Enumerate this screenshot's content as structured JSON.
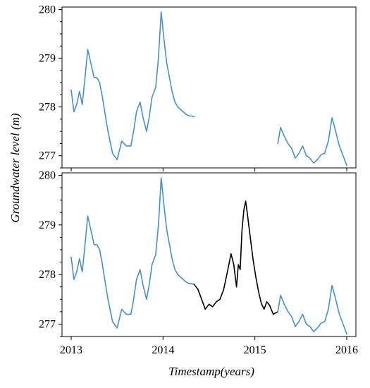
{
  "colors": {
    "observed": "#4a90c4",
    "imputed": "#000000"
  },
  "chart_data": [
    {
      "type": "line",
      "panel": "top",
      "xlabel": "",
      "ylabel": "Groundwater level (m)",
      "xlim": [
        2012.9,
        2016.1
      ],
      "ylim": [
        276.75,
        280.05
      ],
      "yticks": [
        277,
        278,
        279,
        280
      ],
      "xticks": [
        2013,
        2014,
        2015,
        2016
      ],
      "show_xtick_labels": false,
      "grid": false,
      "series": [
        {
          "color_key": "observed",
          "x": [
            2013.0,
            2013.03,
            2013.06,
            2013.09,
            2013.12,
            2013.15,
            2013.18,
            2013.22,
            2013.25,
            2013.28,
            2013.31,
            2013.34,
            2013.37,
            2013.4,
            2013.45,
            2013.5,
            2013.55,
            2013.6,
            2013.65,
            2013.68,
            2013.71,
            2013.75,
            2013.78,
            2013.82,
            2013.85,
            2013.88,
            2013.92,
            2013.95,
            2013.98,
            2014.01,
            2014.04,
            2014.07,
            2014.1,
            2014.13,
            2014.16,
            2014.19,
            2014.22,
            2014.25,
            2014.28,
            2014.3,
            2014.34
          ],
          "values": [
            278.35,
            277.9,
            278.05,
            278.32,
            278.05,
            278.6,
            279.18,
            278.85,
            278.6,
            278.6,
            278.5,
            278.2,
            277.85,
            277.5,
            277.05,
            276.92,
            277.3,
            277.2,
            277.2,
            277.5,
            277.9,
            278.1,
            277.8,
            277.5,
            277.8,
            278.2,
            278.4,
            279.0,
            279.95,
            279.4,
            278.9,
            278.6,
            278.3,
            278.1,
            278.0,
            277.95,
            277.9,
            277.85,
            277.82,
            277.82,
            277.8
          ]
        },
        {
          "color_key": "observed",
          "x": [
            2015.25,
            2015.28,
            2015.32,
            2015.36,
            2015.4,
            2015.44,
            2015.48,
            2015.52,
            2015.56,
            2015.6,
            2015.64,
            2015.68,
            2015.72,
            2015.76,
            2015.8,
            2015.84,
            2015.88,
            2015.92,
            2015.96,
            2016.0
          ],
          "values": [
            277.25,
            277.58,
            277.4,
            277.25,
            277.15,
            276.95,
            277.05,
            277.2,
            277.0,
            276.95,
            276.85,
            276.92,
            277.02,
            277.05,
            277.3,
            277.78,
            277.5,
            277.2,
            277.0,
            276.8
          ]
        }
      ]
    },
    {
      "type": "line",
      "panel": "bottom",
      "xlabel": "Timestamp(years)",
      "ylabel": "",
      "xlim": [
        2012.9,
        2016.1
      ],
      "ylim": [
        276.75,
        280.05
      ],
      "yticks": [
        277,
        278,
        279,
        280
      ],
      "xticks": [
        2013,
        2014,
        2015,
        2016
      ],
      "xtick_labels": [
        "2013",
        "2014",
        "2015",
        "2016"
      ],
      "grid": false,
      "series": [
        {
          "color_key": "observed",
          "x": [
            2013.0,
            2013.03,
            2013.06,
            2013.09,
            2013.12,
            2013.15,
            2013.18,
            2013.22,
            2013.25,
            2013.28,
            2013.31,
            2013.34,
            2013.37,
            2013.4,
            2013.45,
            2013.5,
            2013.55,
            2013.6,
            2013.65,
            2013.68,
            2013.71,
            2013.75,
            2013.78,
            2013.82,
            2013.85,
            2013.88,
            2013.92,
            2013.95,
            2013.98,
            2014.01,
            2014.04,
            2014.07,
            2014.1,
            2014.13,
            2014.16,
            2014.19,
            2014.22,
            2014.25,
            2014.28,
            2014.3,
            2014.34
          ],
          "values": [
            278.35,
            277.9,
            278.05,
            278.32,
            278.05,
            278.6,
            279.18,
            278.85,
            278.6,
            278.6,
            278.5,
            278.2,
            277.85,
            277.5,
            277.05,
            276.92,
            277.3,
            277.2,
            277.2,
            277.5,
            277.9,
            278.1,
            277.8,
            277.5,
            277.8,
            278.2,
            278.4,
            279.0,
            279.95,
            279.4,
            278.9,
            278.6,
            278.3,
            278.1,
            278.0,
            277.95,
            277.9,
            277.85,
            277.82,
            277.82,
            277.8
          ]
        },
        {
          "color_key": "imputed",
          "x": [
            2014.34,
            2014.38,
            2014.42,
            2014.46,
            2014.5,
            2014.54,
            2014.58,
            2014.62,
            2014.66,
            2014.7,
            2014.74,
            2014.77,
            2014.8,
            2014.82,
            2014.84,
            2014.86,
            2014.88,
            2014.9,
            2014.92,
            2014.95,
            2014.98,
            2015.01,
            2015.04,
            2015.07,
            2015.1,
            2015.13,
            2015.16,
            2015.2,
            2015.25
          ],
          "values": [
            277.8,
            277.7,
            277.5,
            277.3,
            277.4,
            277.35,
            277.45,
            277.5,
            277.7,
            278.05,
            278.42,
            278.2,
            277.75,
            278.2,
            278.1,
            278.9,
            279.3,
            279.48,
            279.2,
            278.75,
            278.3,
            277.95,
            277.65,
            277.42,
            277.3,
            277.45,
            277.38,
            277.2,
            277.25
          ]
        },
        {
          "color_key": "observed",
          "x": [
            2015.25,
            2015.28,
            2015.32,
            2015.36,
            2015.4,
            2015.44,
            2015.48,
            2015.52,
            2015.56,
            2015.6,
            2015.64,
            2015.68,
            2015.72,
            2015.76,
            2015.8,
            2015.84,
            2015.88,
            2015.92,
            2015.96,
            2016.0
          ],
          "values": [
            277.25,
            277.58,
            277.4,
            277.25,
            277.15,
            276.95,
            277.05,
            277.2,
            277.0,
            276.95,
            276.85,
            276.92,
            277.02,
            277.05,
            277.3,
            277.78,
            277.5,
            277.2,
            277.0,
            276.8
          ]
        }
      ]
    }
  ]
}
